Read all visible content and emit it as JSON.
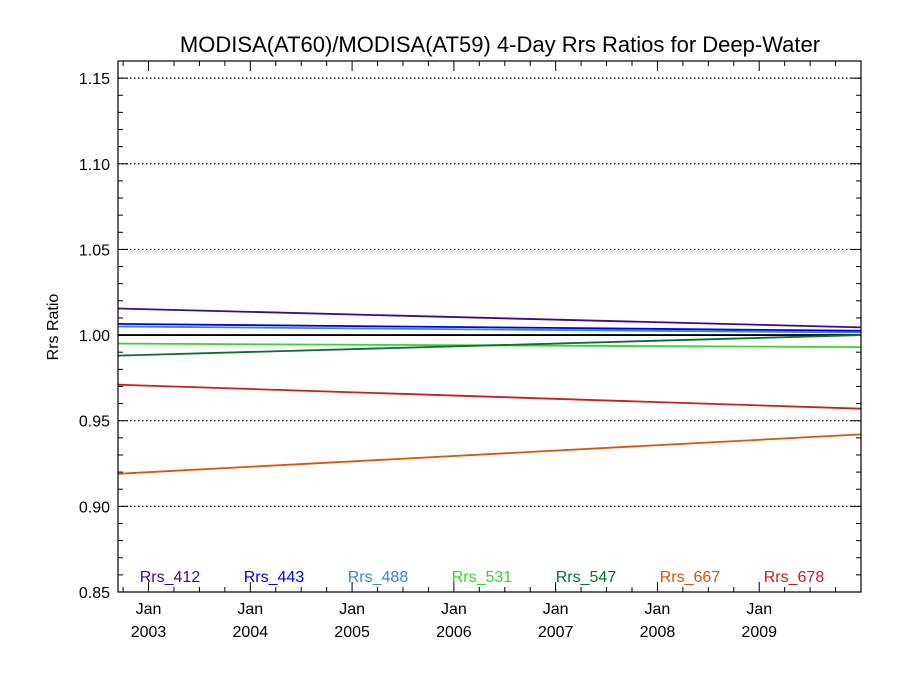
{
  "chart_data": {
    "type": "line",
    "title": "MODISA(AT60)/MODISA(AT59) 4-Day Rrs Ratios for Deep-Water",
    "ylabel": "Rrs Ratio",
    "xlabel": "",
    "xlim": [
      2002.7,
      2010.0
    ],
    "ylim": [
      0.85,
      1.16
    ],
    "yticks": [
      {
        "value": 0.85,
        "label": "0.85"
      },
      {
        "value": 0.9,
        "label": "0.90"
      },
      {
        "value": 0.95,
        "label": "0.95"
      },
      {
        "value": 1.0,
        "label": "1.00"
      },
      {
        "value": 1.05,
        "label": "1.05"
      },
      {
        "value": 1.1,
        "label": "1.10"
      },
      {
        "value": 1.15,
        "label": "1.15"
      }
    ],
    "xticks": [
      {
        "value": 2003,
        "month": "Jan",
        "year": "2003"
      },
      {
        "value": 2004,
        "month": "Jan",
        "year": "2004"
      },
      {
        "value": 2005,
        "month": "Jan",
        "year": "2005"
      },
      {
        "value": 2006,
        "month": "Jan",
        "year": "2006"
      },
      {
        "value": 2007,
        "month": "Jan",
        "year": "2007"
      },
      {
        "value": 2008,
        "month": "Jan",
        "year": "2008"
      },
      {
        "value": 2009,
        "month": "Jan",
        "year": "2009"
      }
    ],
    "grid": "dotted horizontal at major y ticks",
    "legend": "bottom, inside plot area",
    "reference_line": {
      "y": 1.0,
      "color": "#000000"
    },
    "series": [
      {
        "name": "Rrs_412",
        "color": "#3d0a8f",
        "x": [
          2002.7,
          2010.0
        ],
        "y": [
          1.0155,
          1.0045
        ]
      },
      {
        "name": "Rrs_443",
        "color": "#0000e6",
        "x": [
          2002.7,
          2010.0
        ],
        "y": [
          1.0065,
          1.0025
        ]
      },
      {
        "name": "Rrs_488",
        "color": "#3a85d0",
        "x": [
          2002.7,
          2010.0
        ],
        "y": [
          1.005,
          1.0015
        ]
      },
      {
        "name": "Rrs_531",
        "color": "#33d633",
        "x": [
          2002.7,
          2010.0
        ],
        "y": [
          0.995,
          0.993
        ]
      },
      {
        "name": "Rrs_547",
        "color": "#0a6e2e",
        "x": [
          2002.7,
          2010.0
        ],
        "y": [
          0.988,
          1.0
        ]
      },
      {
        "name": "Rrs_667",
        "color": "#d9550a",
        "x": [
          2002.7,
          2010.0
        ],
        "y": [
          0.919,
          0.942
        ]
      },
      {
        "name": "Rrs_678",
        "color": "#c81e1e",
        "x": [
          2002.7,
          2010.0
        ],
        "y": [
          0.971,
          0.957
        ]
      }
    ]
  }
}
